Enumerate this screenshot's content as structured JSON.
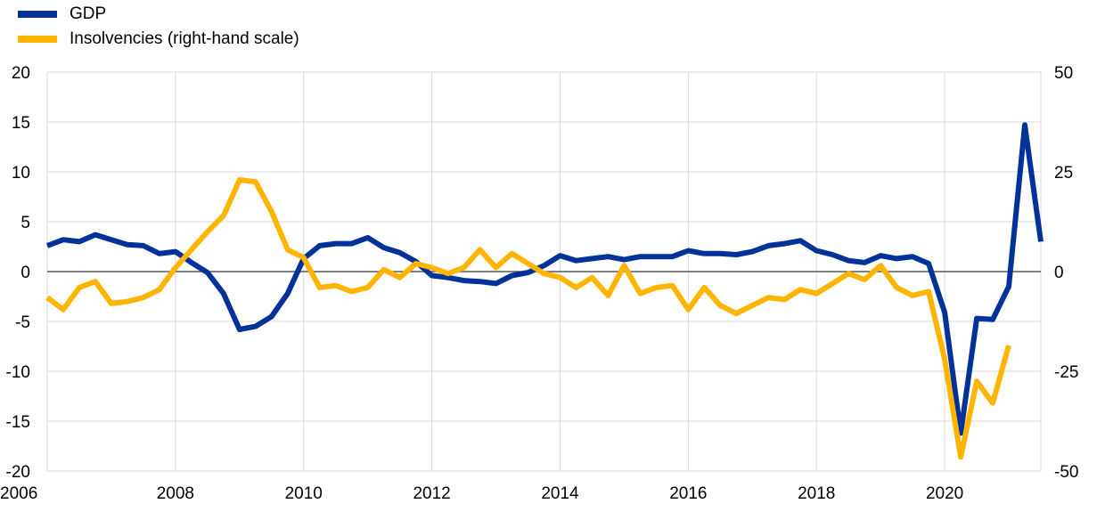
{
  "legend": {
    "gdp_label": "GDP",
    "insolvencies_label": "Insolvencies (right-hand scale)"
  },
  "colors": {
    "gdp": "#003299",
    "insolvencies": "#FFB400",
    "grid": "#d9d9d9",
    "zero_line": "#595959"
  },
  "chart_data": {
    "type": "line",
    "x_ticks": [
      "2006",
      "2008",
      "2010",
      "2012",
      "2014",
      "2016",
      "2018",
      "2020"
    ],
    "xlim": [
      2006.0,
      2021.5
    ],
    "left_axis": {
      "ylim": [
        -20,
        20
      ],
      "ticks": [
        "20",
        "15",
        "10",
        "5",
        "0",
        "-5",
        "-10",
        "-15",
        "-20"
      ]
    },
    "right_axis": {
      "ylim": [
        -50,
        50
      ],
      "ticks": [
        "50",
        "25",
        "0",
        "-25",
        "-50"
      ]
    },
    "grid": true,
    "legend_position": "top-left",
    "series": [
      {
        "name": "GDP",
        "axis": "left",
        "x": [
          2006.0,
          2006.25,
          2006.5,
          2006.75,
          2007.0,
          2007.25,
          2007.5,
          2007.75,
          2008.0,
          2008.25,
          2008.5,
          2008.75,
          2009.0,
          2009.25,
          2009.5,
          2009.75,
          2010.0,
          2010.25,
          2010.5,
          2010.75,
          2011.0,
          2011.25,
          2011.5,
          2011.75,
          2012.0,
          2012.25,
          2012.5,
          2012.75,
          2013.0,
          2013.25,
          2013.5,
          2013.75,
          2014.0,
          2014.25,
          2014.5,
          2014.75,
          2015.0,
          2015.25,
          2015.5,
          2015.75,
          2016.0,
          2016.25,
          2016.5,
          2016.75,
          2017.0,
          2017.25,
          2017.5,
          2017.75,
          2018.0,
          2018.25,
          2018.5,
          2018.75,
          2019.0,
          2019.25,
          2019.5,
          2019.75,
          2020.0,
          2020.25,
          2020.5,
          2020.75,
          2021.0,
          2021.25,
          2021.5
        ],
        "values": [
          2.6,
          3.2,
          3.0,
          3.7,
          3.2,
          2.7,
          2.6,
          1.8,
          2.0,
          0.9,
          -0.1,
          -2.2,
          -5.8,
          -5.5,
          -4.5,
          -2.2,
          1.3,
          2.6,
          2.8,
          2.8,
          3.4,
          2.4,
          1.9,
          1.0,
          -0.4,
          -0.6,
          -0.9,
          -1.0,
          -1.2,
          -0.4,
          -0.1,
          0.6,
          1.6,
          1.1,
          1.3,
          1.5,
          1.2,
          1.5,
          1.5,
          1.5,
          2.1,
          1.8,
          1.8,
          1.7,
          2.0,
          2.6,
          2.8,
          3.1,
          2.1,
          1.7,
          1.1,
          0.9,
          1.6,
          1.3,
          1.5,
          0.8,
          -4.1,
          -16.2,
          -4.7,
          -4.8,
          -1.5,
          14.7,
          3.0
        ]
      },
      {
        "name": "Insolvencies (right-hand scale)",
        "axis": "right",
        "x": [
          2006.0,
          2006.25,
          2006.5,
          2006.75,
          2007.0,
          2007.25,
          2007.5,
          2007.75,
          2008.0,
          2008.25,
          2008.5,
          2008.75,
          2009.0,
          2009.25,
          2009.5,
          2009.75,
          2010.0,
          2010.25,
          2010.5,
          2010.75,
          2011.0,
          2011.25,
          2011.5,
          2011.75,
          2012.0,
          2012.25,
          2012.5,
          2012.75,
          2013.0,
          2013.25,
          2013.5,
          2013.75,
          2014.0,
          2014.25,
          2014.5,
          2014.75,
          2015.0,
          2015.25,
          2015.5,
          2015.75,
          2016.0,
          2016.25,
          2016.5,
          2016.75,
          2017.0,
          2017.25,
          2017.5,
          2017.75,
          2018.0,
          2018.25,
          2018.5,
          2018.75,
          2019.0,
          2019.25,
          2019.5,
          2019.75,
          2020.0,
          2020.25,
          2020.5,
          2020.75,
          2021.0
        ],
        "values": [
          -6.5,
          -9.5,
          -4.0,
          -2.5,
          -8.0,
          -7.5,
          -6.5,
          -4.5,
          1.0,
          5.5,
          10.0,
          14.0,
          23.0,
          22.5,
          15.0,
          5.5,
          3.5,
          -4.0,
          -3.5,
          -5.0,
          -4.0,
          0.5,
          -1.5,
          2.0,
          1.0,
          -0.5,
          1.0,
          5.5,
          1.0,
          4.5,
          2.0,
          -0.5,
          -1.5,
          -4.0,
          -1.5,
          -6.0,
          1.5,
          -5.5,
          -4.0,
          -3.5,
          -9.5,
          -4.0,
          -8.5,
          -10.5,
          -8.5,
          -6.5,
          -7.0,
          -4.5,
          -5.5,
          -3.0,
          -0.5,
          -2.0,
          1.5,
          -4.0,
          -6.0,
          -5.0,
          -22.0,
          -46.5,
          -27.5,
          -33.0,
          -18.5
        ]
      }
    ]
  }
}
